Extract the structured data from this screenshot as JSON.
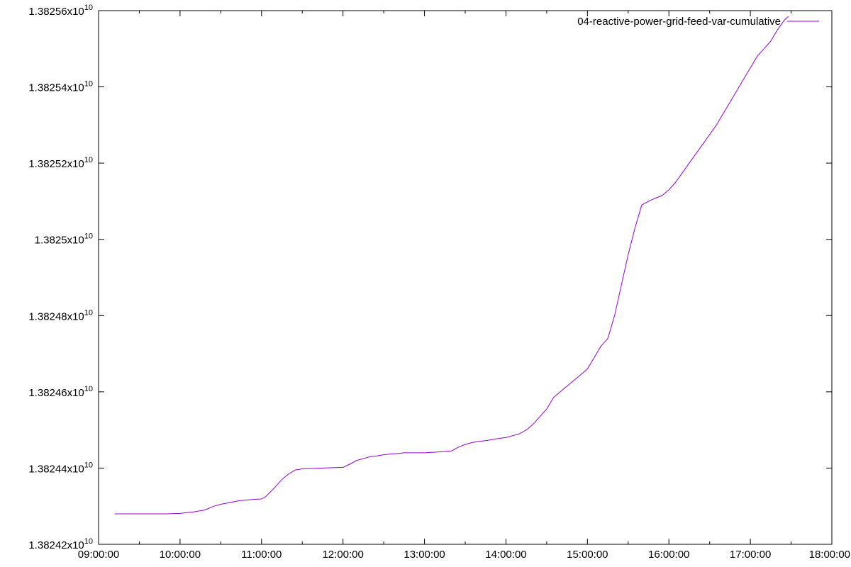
{
  "chart_data": {
    "type": "line",
    "title": "",
    "xlabel": "",
    "ylabel": "",
    "legend_position": "top-right",
    "grid": false,
    "x_ticks": [
      "09:00:00",
      "10:00:00",
      "11:00:00",
      "12:00:00",
      "13:00:00",
      "14:00:00",
      "15:00:00",
      "16:00:00",
      "17:00:00",
      "18:00:00"
    ],
    "y_ticks": [
      {
        "mantissa": "1.38242x10",
        "exponent": "10"
      },
      {
        "mantissa": "1.38244x10",
        "exponent": "10"
      },
      {
        "mantissa": "1.38246x10",
        "exponent": "10"
      },
      {
        "mantissa": "1.38248x10",
        "exponent": "10"
      },
      {
        "mantissa": "1.3825x10",
        "exponent": "10"
      },
      {
        "mantissa": "1.38252x10",
        "exponent": "10"
      },
      {
        "mantissa": "1.38254x10",
        "exponent": "10"
      },
      {
        "mantissa": "1.38256x10",
        "exponent": "10"
      }
    ],
    "xlim": [
      "09:00:00",
      "18:00:00"
    ],
    "ylim": [
      13824200000,
      13825600000
    ],
    "series": [
      {
        "name": "04-reactive-power-grid-feed-var-cumulative",
        "color": "#9400d3",
        "x": [
          "09:12:00",
          "09:30:00",
          "09:50:00",
          "10:00:00",
          "10:10:00",
          "10:18:00",
          "10:25:00",
          "10:30:00",
          "10:40:00",
          "10:45:00",
          "10:55:00",
          "11:00:00",
          "11:03:00",
          "11:10:00",
          "11:15:00",
          "11:20:00",
          "11:25:00",
          "11:30:00",
          "11:45:00",
          "12:00:00",
          "12:05:00",
          "12:10:00",
          "12:15:00",
          "12:20:00",
          "12:25:00",
          "12:30:00",
          "12:35:00",
          "12:40:00",
          "12:45:00",
          "13:00:00",
          "13:10:00",
          "13:20:00",
          "13:25:00",
          "13:30:00",
          "13:35:00",
          "13:40:00",
          "13:45:00",
          "13:50:00",
          "13:55:00",
          "14:00:00",
          "14:05:00",
          "14:10:00",
          "14:15:00",
          "14:20:00",
          "14:25:00",
          "14:30:00",
          "14:35:00",
          "14:40:00",
          "14:45:00",
          "14:50:00",
          "14:55:00",
          "15:00:00",
          "15:05:00",
          "15:10:00",
          "15:15:00",
          "15:20:00",
          "15:25:00",
          "15:30:00",
          "15:35:00",
          "15:40:00",
          "15:45:00",
          "15:50:00",
          "15:55:00",
          "16:00:00",
          "16:05:00",
          "16:10:00",
          "16:15:00",
          "16:20:00",
          "16:25:00",
          "16:30:00",
          "16:35:00",
          "16:40:00",
          "16:45:00",
          "16:50:00",
          "16:55:00",
          "17:00:00",
          "17:05:00",
          "17:10:00",
          "17:15:00",
          "17:20:00",
          "17:25:00",
          "17:28:00"
        ],
        "values": [
          13824280000,
          13824280000,
          13824280000,
          13824281000,
          13824285000,
          13824290000,
          13824300000,
          13824305000,
          13824312000,
          13824315000,
          13824318000,
          13824319000,
          13824325000,
          13824350000,
          13824370000,
          13824385000,
          13824395000,
          13824398000,
          13824400000,
          13824402000,
          13824410000,
          13824420000,
          13824425000,
          13824430000,
          13824432000,
          13824435000,
          13824437000,
          13824438000,
          13824440000,
          13824440000,
          13824442000,
          13824445000,
          13824455000,
          13824462000,
          13824467000,
          13824470000,
          13824472000,
          13824475000,
          13824478000,
          13824480000,
          13824485000,
          13824490000,
          13824500000,
          13824515000,
          13824535000,
          13824555000,
          13824585000,
          13824600000,
          13824615000,
          13824630000,
          13824645000,
          13824660000,
          13824690000,
          13824720000,
          13824740000,
          13824800000,
          13824880000,
          13824960000,
          13825030000,
          13825090000,
          13825100000,
          13825108000,
          13825115000,
          13825130000,
          13825150000,
          13825175000,
          13825200000,
          13825225000,
          13825250000,
          13825275000,
          13825300000,
          13825330000,
          13825360000,
          13825390000,
          13825420000,
          13825450000,
          13825480000,
          13825500000,
          13825520000,
          13825550000,
          13825575000,
          13825585000
        ]
      }
    ]
  }
}
